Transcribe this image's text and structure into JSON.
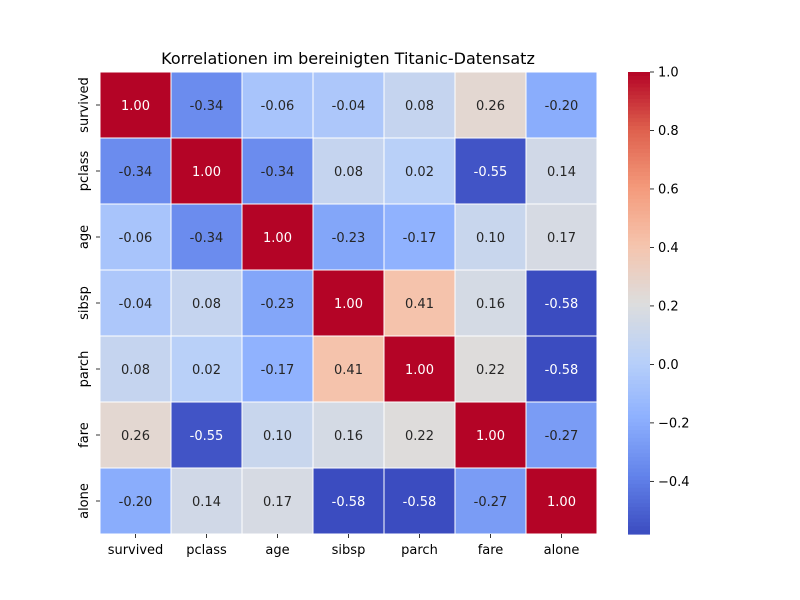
{
  "chart_data": {
    "type": "heatmap",
    "title": "Korrelationen im bereinigten Titanic-Datensatz",
    "x_labels": [
      "survived",
      "pclass",
      "age",
      "sibsp",
      "parch",
      "fare",
      "alone"
    ],
    "y_labels": [
      "survived",
      "pclass",
      "age",
      "sibsp",
      "parch",
      "fare",
      "alone"
    ],
    "values": [
      [
        1.0,
        -0.34,
        -0.06,
        -0.04,
        0.08,
        0.26,
        -0.2
      ],
      [
        -0.34,
        1.0,
        -0.34,
        0.08,
        0.02,
        -0.55,
        0.14
      ],
      [
        -0.06,
        -0.34,
        1.0,
        -0.23,
        -0.17,
        0.1,
        0.17
      ],
      [
        -0.04,
        0.08,
        -0.23,
        1.0,
        0.41,
        0.16,
        -0.58
      ],
      [
        0.08,
        0.02,
        -0.17,
        0.41,
        1.0,
        0.22,
        -0.58
      ],
      [
        0.26,
        -0.55,
        0.1,
        0.16,
        0.22,
        1.0,
        -0.27
      ],
      [
        -0.2,
        0.14,
        0.17,
        -0.58,
        -0.58,
        -0.27,
        1.0
      ]
    ],
    "value_format": "0.00",
    "colormap": "coolwarm",
    "colorbar": {
      "range": [
        -0.58,
        1.0
      ],
      "ticks": [
        1.0,
        0.8,
        0.6,
        0.4,
        0.2,
        0.0,
        -0.2,
        -0.4
      ],
      "tick_labels": [
        "1.0",
        "0.8",
        "0.6",
        "0.4",
        "0.2",
        "0.0",
        "−0.2",
        "−0.4"
      ]
    },
    "grid_lines": "white",
    "colors": {
      "low": "#3b4cc0",
      "mid": "#dddddd",
      "high": "#b40426"
    }
  }
}
